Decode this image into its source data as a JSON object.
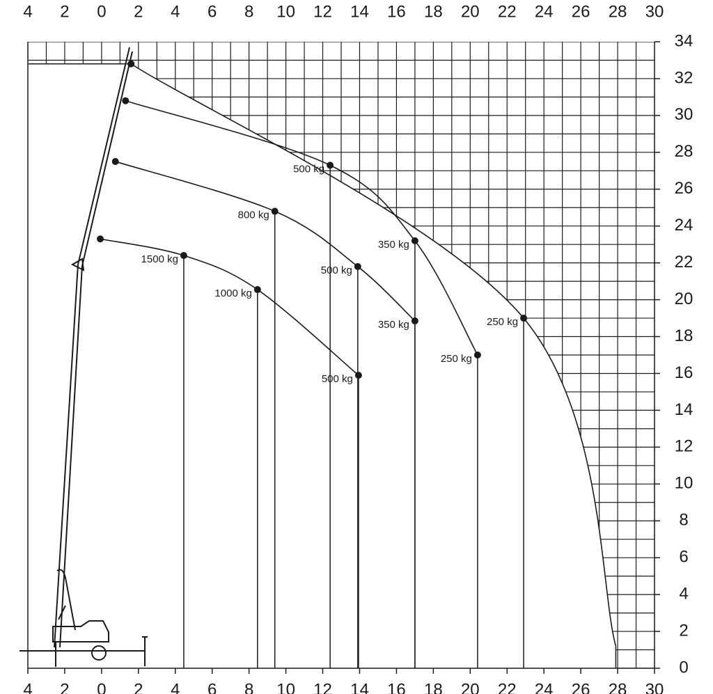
{
  "chart_data": {
    "type": "scatter",
    "xlim": [
      -4,
      30
    ],
    "ylim": [
      0,
      34
    ],
    "xticks": [
      {
        "value": -4,
        "label": "4"
      },
      {
        "value": -2,
        "label": "2"
      },
      0,
      2,
      4,
      6,
      8,
      10,
      12,
      14,
      16,
      18,
      20,
      22,
      24,
      26,
      28,
      30
    ],
    "yticks": [
      0,
      2,
      4,
      6,
      8,
      10,
      12,
      14,
      16,
      18,
      20,
      22,
      24,
      26,
      28,
      30,
      32,
      34
    ],
    "grid": true,
    "color": "#1a1a1a",
    "series": [
      {
        "x": [
          1.6,
          22.9,
          27.9
        ],
        "y": [
          32.8,
          19.0,
          1.2
        ],
        "labels": [
          null,
          "250 kg",
          null
        ],
        "markers": [
          true,
          true,
          false
        ]
      },
      {
        "x": [
          1.3,
          12.4,
          17.0,
          20.4
        ],
        "y": [
          30.8,
          27.3,
          23.2,
          17.0
        ],
        "labels": [
          null,
          "500 kg",
          "350 kg",
          "250 kg"
        ],
        "markers": [
          true,
          true,
          true,
          true
        ]
      },
      {
        "x": [
          0.75,
          9.4,
          13.9,
          17.0
        ],
        "y": [
          27.5,
          24.8,
          21.8,
          18.85
        ],
        "labels": [
          null,
          "800 kg",
          "500 kg",
          "350 kg"
        ],
        "markers": [
          true,
          true,
          true,
          true
        ]
      },
      {
        "x": [
          -0.07,
          4.46,
          8.46,
          13.94
        ],
        "y": [
          23.3,
          22.4,
          20.55,
          15.9
        ],
        "labels": [
          null,
          "1500 kg",
          "1000 kg",
          "500 kg"
        ],
        "markers": [
          true,
          true,
          true,
          true
        ]
      }
    ]
  }
}
